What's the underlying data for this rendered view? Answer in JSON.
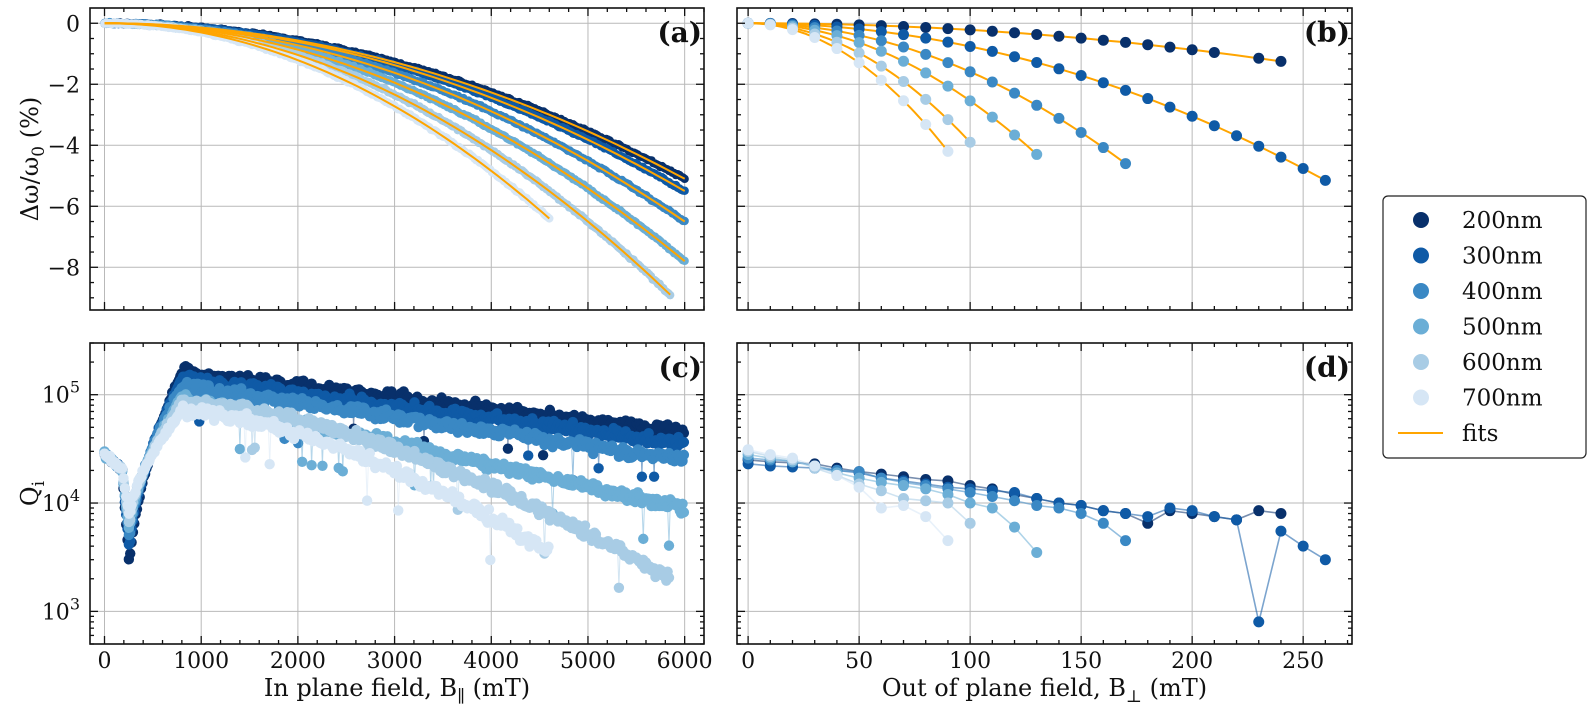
{
  "chart_data": {
    "colors": {
      "200nm": "#08306b",
      "300nm": "#0f5aa6",
      "400nm": "#3a88c4",
      "500nm": "#6baed6",
      "600nm": "#a8cce5",
      "700nm": "#d6e6f5",
      "fits": "#ffa500"
    },
    "legend": {
      "placement": "right",
      "entries": [
        "200nm",
        "300nm",
        "400nm",
        "500nm",
        "600nm",
        "700nm",
        "fits"
      ]
    },
    "panels": [
      {
        "id": "a",
        "tag": "(a)",
        "type": "scatter",
        "xlim": [
          -150,
          6200
        ],
        "ylim": [
          -9.4,
          0.5
        ],
        "xticks": [
          0,
          1000,
          2000,
          3000,
          4000,
          5000,
          6000
        ],
        "yticks": [
          0,
          -2,
          -4,
          -6,
          -8
        ],
        "ytick_labels": [
          "0",
          "−2",
          "−4",
          "−6",
          "−8"
        ],
        "ylabel": "Δω/ω",
        "ylabel_sub": "0",
        "ylabel_tail": " (%)",
        "grid": true,
        "series": [
          {
            "name": "200nm",
            "xmax": 6000,
            "yend": -5.1
          },
          {
            "name": "300nm",
            "xmax": 6000,
            "yend": -5.5
          },
          {
            "name": "400nm",
            "xmax": 6000,
            "yend": -6.5
          },
          {
            "name": "500nm",
            "xmax": 6000,
            "yend": -7.8
          },
          {
            "name": "600nm",
            "xmax": 5850,
            "yend": -8.9
          },
          {
            "name": "700nm",
            "xmax": 4600,
            "yend": -6.4
          }
        ]
      },
      {
        "id": "b",
        "tag": "(b)",
        "type": "scatter",
        "xlim": [
          -5,
          272
        ],
        "ylim": [
          -9.4,
          0.5
        ],
        "xticks": [
          0,
          50,
          100,
          150,
          200,
          250
        ],
        "yticks": [
          0,
          -2,
          -4,
          -6,
          -8
        ],
        "grid": true,
        "series": [
          {
            "name": "200nm",
            "xmax": 240,
            "yend": -1.25
          },
          {
            "name": "300nm",
            "xmax": 260,
            "yend": -5.15
          },
          {
            "name": "400nm",
            "xmax": 170,
            "yend": -4.6
          },
          {
            "name": "500nm",
            "xmax": 130,
            "yend": -4.3
          },
          {
            "name": "600nm",
            "xmax": 100,
            "yend": -3.9
          },
          {
            "name": "700nm",
            "xmax": 90,
            "yend": -4.2
          }
        ]
      },
      {
        "id": "c",
        "tag": "(c)",
        "type": "scatter",
        "yscale": "log",
        "xlim": [
          -150,
          6200
        ],
        "ylim": [
          500,
          300000
        ],
        "xticks": [
          0,
          1000,
          2000,
          3000,
          4000,
          5000,
          6000
        ],
        "yticks": [
          1000,
          10000,
          100000
        ],
        "ytick_base": "10",
        "ytick_exps": [
          "3",
          "4",
          "5"
        ],
        "xlabel": "In plane field, B",
        "xlabel_sub": "∥",
        "xlabel_tail": " (mT)",
        "ylabel": "Q",
        "ylabel_sub": "i",
        "grid": true,
        "series": [
          {
            "name": "200nm",
            "xmax": 6000,
            "qpeak": 160000,
            "qend": 45000
          },
          {
            "name": "300nm",
            "xmax": 6000,
            "qpeak": 140000,
            "qend": 35000
          },
          {
            "name": "400nm",
            "xmax": 6000,
            "qpeak": 120000,
            "qend": 25000
          },
          {
            "name": "500nm",
            "xmax": 6000,
            "qpeak": 95000,
            "qend": 9000
          },
          {
            "name": "600nm",
            "xmax": 5850,
            "qpeak": 85000,
            "qend": 2000
          },
          {
            "name": "700nm",
            "xmax": 4600,
            "qpeak": 70000,
            "qend": 3500
          }
        ]
      },
      {
        "id": "d",
        "tag": "(d)",
        "type": "line",
        "yscale": "log",
        "xlim": [
          -5,
          272
        ],
        "ylim": [
          500,
          300000
        ],
        "xticks": [
          0,
          50,
          100,
          150,
          200,
          250
        ],
        "yticks": [
          1000,
          10000,
          100000
        ],
        "xlabel": "Out of plane field, B",
        "xlabel_sub": "⊥",
        "xlabel_tail": " (mT)",
        "grid": true,
        "series": [
          {
            "name": "200nm",
            "x": [
              0,
              10,
              20,
              30,
              40,
              50,
              60,
              70,
              80,
              90,
              100,
              110,
              120,
              130,
              140,
              150,
              160,
              170,
              180,
              190,
              200,
              210,
              220,
              230,
              240
            ],
            "y": [
              25000,
              24000,
              23500,
              23000,
              21000,
              19500,
              18500,
              17500,
              16500,
              16000,
              14500,
              13500,
              12000,
              11000,
              10000,
              9500,
              8500,
              8000,
              6500,
              8500,
              8000,
              7500,
              7000,
              8500,
              8000
            ]
          },
          {
            "name": "300nm",
            "x": [
              0,
              10,
              20,
              30,
              40,
              50,
              60,
              70,
              80,
              90,
              100,
              110,
              120,
              130,
              140,
              150,
              160,
              170,
              180,
              190,
              200,
              210,
              220,
              230,
              240,
              250,
              260
            ],
            "y": [
              23000,
              22000,
              21500,
              21000,
              20000,
              19000,
              17000,
              16000,
              15000,
              14000,
              13500,
              13000,
              12500,
              11000,
              10000,
              9500,
              8500,
              8000,
              7500,
              9000,
              8500,
              7500,
              7000,
              800,
              5500,
              4000,
              3000
            ]
          },
          {
            "name": "400nm",
            "x": [
              0,
              10,
              20,
              30,
              40,
              50,
              60,
              70,
              80,
              90,
              100,
              110,
              120,
              130,
              140,
              150,
              160,
              170
            ],
            "y": [
              26000,
              25000,
              24500,
              22000,
              20000,
              19500,
              17000,
              15500,
              14500,
              13500,
              12500,
              11500,
              10500,
              9500,
              9000,
              8000,
              6500,
              4500
            ]
          },
          {
            "name": "500nm",
            "x": [
              0,
              10,
              20,
              30,
              40,
              50,
              60,
              70,
              80,
              90,
              100,
              110,
              120,
              130
            ],
            "y": [
              28000,
              26000,
              24000,
              22000,
              19000,
              17000,
              15500,
              14500,
              13500,
              12000,
              10000,
              9000,
              6000,
              3500
            ]
          },
          {
            "name": "600nm",
            "x": [
              0,
              10,
              20,
              30,
              40,
              50,
              60,
              70,
              80,
              90,
              100
            ],
            "y": [
              30000,
              27000,
              25000,
              21000,
              18000,
              15000,
              13000,
              11000,
              10500,
              10000,
              6500
            ]
          },
          {
            "name": "700nm",
            "x": [
              0,
              10,
              20,
              30,
              40,
              50,
              60,
              70,
              80,
              90
            ],
            "y": [
              31000,
              28000,
              26000,
              22000,
              18000,
              14000,
              9000,
              9500,
              7500,
              4500
            ]
          }
        ]
      }
    ]
  }
}
